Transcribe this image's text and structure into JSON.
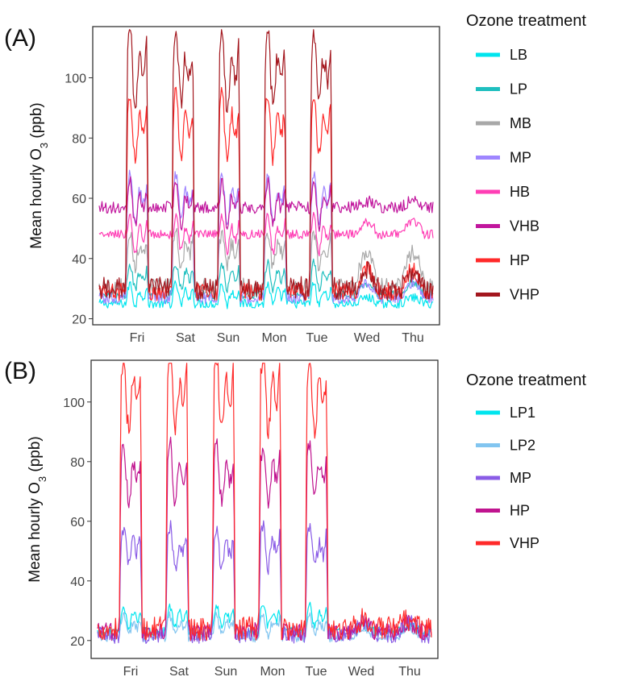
{
  "chart_data": [
    {
      "panel": "(A)",
      "type": "line",
      "ylabel": "Mean hourly O3 (ppb)",
      "ylabel_prefix": "Mean hourly O",
      "ylabel_sub": "3",
      "ylabel_suffix": " (ppb)",
      "ylim": [
        18,
        117
      ],
      "yticks": [
        20,
        40,
        60,
        80,
        100
      ],
      "xtick_labels": [
        "Fri",
        "Sat",
        "Sun",
        "Mon",
        "Tue",
        "Wed",
        "Thu"
      ],
      "legend_title": "Ozone treatment",
      "legend_position": "right",
      "grid": false,
      "exposure_days": 5,
      "series": [
        {
          "name": "LB",
          "color": "#00e5ee",
          "night": 25,
          "day": 28,
          "recovery": 27,
          "noise": 1.5
        },
        {
          "name": "LP",
          "color": "#1fbfbf",
          "night": 28,
          "day": 34,
          "recovery": 32,
          "noise": 1.5
        },
        {
          "name": "MB",
          "color": "#a8a8a8",
          "night": 31,
          "day": 43,
          "recovery": 42,
          "noise": 2.5
        },
        {
          "name": "MP",
          "color": "#9f86ff",
          "night": 27,
          "day": 60,
          "recovery": 32,
          "noise": 2
        },
        {
          "name": "HB",
          "color": "#ff3eb5",
          "night": 48,
          "day": 48,
          "recovery": 52,
          "noise": 1.5
        },
        {
          "name": "VHB",
          "color": "#c1169d",
          "night": 57,
          "day": 58,
          "recovery": 59,
          "noise": 2
        },
        {
          "name": "HP",
          "color": "#ff2a2a",
          "night": 29,
          "day": 84,
          "recovery": 36,
          "noise": 3
        },
        {
          "name": "VHP",
          "color": "#a3171e",
          "night": 30,
          "day": 103,
          "recovery": 36,
          "noise": 4
        }
      ]
    },
    {
      "panel": "(B)",
      "type": "line",
      "ylabel": "Mean hourly O3 (ppb)",
      "ylabel_prefix": "Mean hourly O",
      "ylabel_sub": "3",
      "ylabel_suffix": " (ppb)",
      "ylim": [
        14,
        114
      ],
      "yticks": [
        20,
        40,
        60,
        80,
        100
      ],
      "xtick_labels": [
        "Fri",
        "Sat",
        "Sun",
        "Mon",
        "Tue",
        "Wed",
        "Thu"
      ],
      "legend_title": "Ozone treatment",
      "legend_position": "right",
      "grid": false,
      "exposure_days": 5,
      "series": [
        {
          "name": "LP1",
          "color": "#00e5ee",
          "night": 23,
          "day": 28,
          "recovery": 25,
          "noise": 1.5
        },
        {
          "name": "LP2",
          "color": "#82c5f0",
          "night": 21,
          "day": 25,
          "recovery": 24,
          "noise": 1.5
        },
        {
          "name": "MP",
          "color": "#8a5ce6",
          "night": 22,
          "day": 51,
          "recovery": 26,
          "noise": 3
        },
        {
          "name": "HP",
          "color": "#c0148f",
          "night": 23,
          "day": 76,
          "recovery": 26,
          "noise": 3
        },
        {
          "name": "VHP",
          "color": "#ff2a2a",
          "night": 24,
          "day": 103,
          "recovery": 27,
          "noise": 4
        }
      ]
    }
  ]
}
